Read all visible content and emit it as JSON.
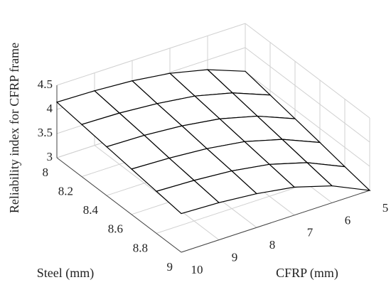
{
  "chart_data": {
    "type": "surface",
    "zlabel": "Reliability index for CFRP frame",
    "xlabel": "CFRP (mm)",
    "ylabel": "Steel (mm)",
    "x": [
      5,
      6,
      7,
      8,
      9,
      10
    ],
    "y": [
      8,
      8.2,
      8.4,
      8.6,
      8.8,
      9
    ],
    "z": [
      [
        3.51,
        3.8,
        3.98,
        4.08,
        4.13,
        4.15
      ],
      [
        3.41,
        3.71,
        3.9,
        4.0,
        4.06,
        4.08
      ],
      [
        3.31,
        3.62,
        3.82,
        3.93,
        3.99,
        4.01
      ],
      [
        3.21,
        3.53,
        3.74,
        3.85,
        3.91,
        3.94
      ],
      [
        3.1,
        3.44,
        3.66,
        3.78,
        3.84,
        3.87
      ],
      [
        3.0,
        3.35,
        3.58,
        3.7,
        3.77,
        3.8
      ]
    ],
    "xlim": [
      5,
      10
    ],
    "ylim": [
      8,
      9
    ],
    "zlim": [
      3,
      4.5
    ],
    "xticks": [
      5,
      6,
      7,
      8,
      9,
      10
    ],
    "yticks": [
      8,
      8.2,
      8.4,
      8.6,
      8.8,
      9
    ],
    "zticks": [
      3,
      3.5,
      4,
      4.5
    ],
    "grid": true,
    "color": "#ffffff",
    "edge_color": "#000000"
  }
}
